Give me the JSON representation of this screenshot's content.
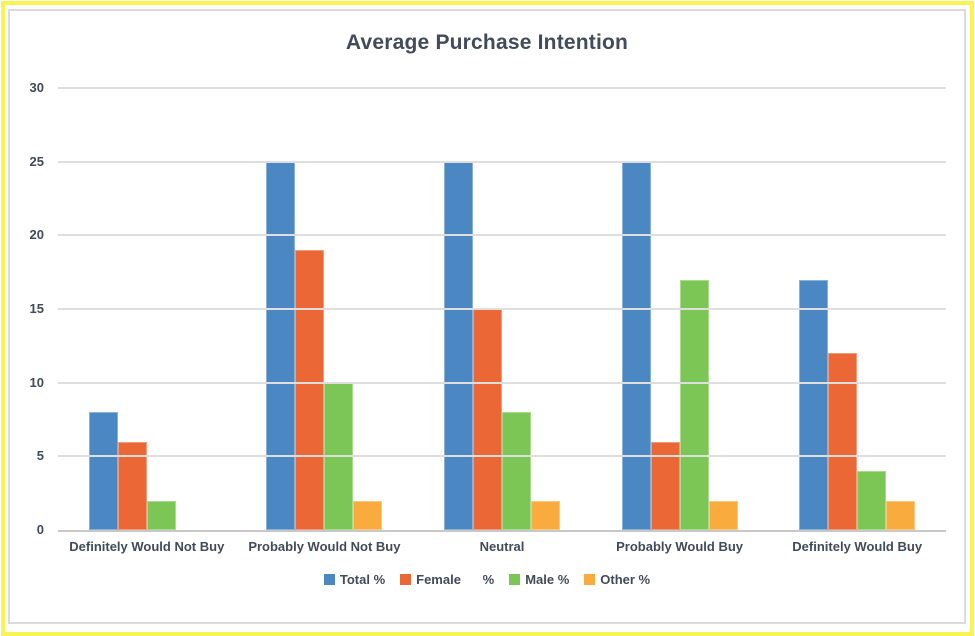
{
  "frame": {
    "outer_border_color": "#F8F553",
    "inner_border_color": "#DBDBDB"
  },
  "chart_data": {
    "type": "bar",
    "title": "Average Purchase Intention",
    "categories": [
      "Definitely Would Not Buy",
      "Probably Would Not Buy",
      "Neutral",
      "Probably Would Buy",
      "Definitely Would Buy"
    ],
    "series": [
      {
        "id": "total",
        "name": "Total %",
        "color": "#4A87C3",
        "values": [
          8,
          25,
          25,
          25,
          17
        ]
      },
      {
        "id": "female",
        "name": "Female      %",
        "color": "#EC6736",
        "values": [
          6,
          19,
          15,
          6,
          12
        ]
      },
      {
        "id": "male",
        "name": "Male %",
        "color": "#7CC655",
        "values": [
          2,
          10,
          8,
          17,
          4
        ]
      },
      {
        "id": "other",
        "name": "Other %",
        "color": "#FAAB3D",
        "values": [
          0,
          2,
          2,
          2,
          2
        ]
      }
    ],
    "ylim": [
      0,
      30
    ],
    "yticks": [
      0,
      5,
      10,
      15,
      20,
      25,
      30
    ],
    "grid": true,
    "legend_position": "bottom",
    "text_color": "#414B59",
    "gridline_color": "#DEDEDE",
    "axis_line_color": "#C8C8C8"
  }
}
